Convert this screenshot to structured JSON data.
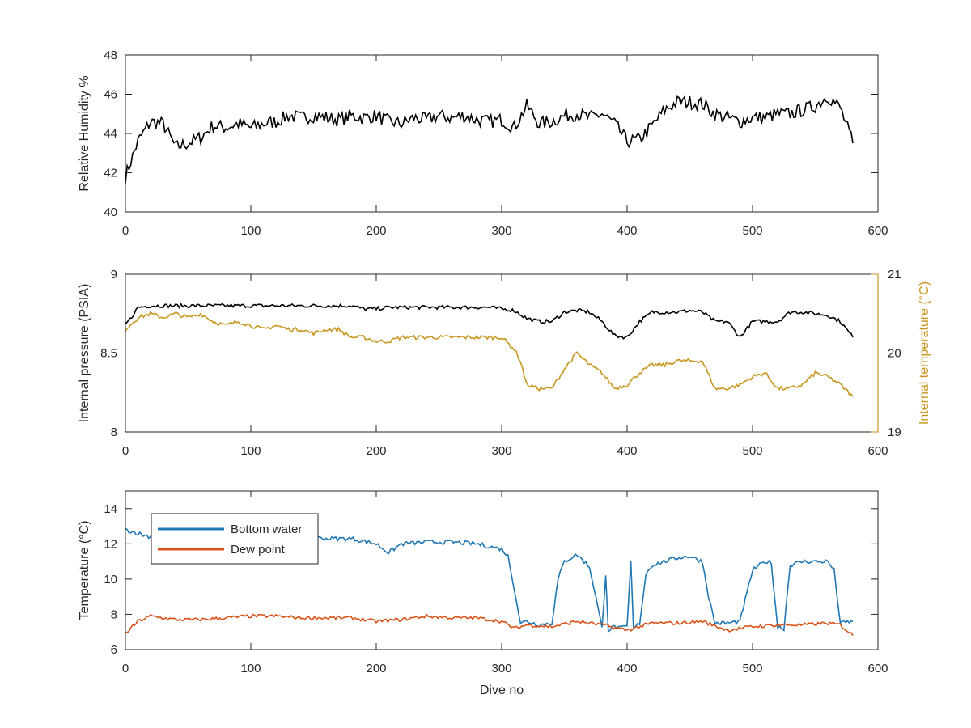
{
  "chart_data": [
    {
      "type": "line",
      "xlim": [
        0,
        600
      ],
      "xticks": [
        0,
        100,
        200,
        300,
        400,
        500,
        600
      ],
      "xlabel": "",
      "ylabel": "Relative Humidity %",
      "ylim": [
        40,
        48
      ],
      "yticks": [
        40,
        42,
        44,
        46,
        48
      ],
      "grid": false,
      "series": [
        {
          "color": "#000000",
          "x": [
            0,
            10,
            20,
            30,
            40,
            50,
            60,
            70,
            80,
            90,
            100,
            110,
            120,
            130,
            140,
            150,
            160,
            170,
            180,
            190,
            200,
            210,
            220,
            230,
            240,
            250,
            260,
            270,
            280,
            290,
            300,
            310,
            320,
            330,
            340,
            350,
            360,
            370,
            380,
            390,
            400,
            410,
            420,
            430,
            440,
            450,
            460,
            470,
            480,
            490,
            500,
            510,
            520,
            530,
            540,
            550,
            560,
            570,
            580
          ],
          "values": [
            41.8,
            43.6,
            44.6,
            44.5,
            43.3,
            43.5,
            43.8,
            44.4,
            44.3,
            44.5,
            44.3,
            44.5,
            44.6,
            44.9,
            44.8,
            44.9,
            44.8,
            44.7,
            44.9,
            44.8,
            44.9,
            44.6,
            44.5,
            44.8,
            44.7,
            44.9,
            44.8,
            44.9,
            44.7,
            44.6,
            44.7,
            44.3,
            45.4,
            44.5,
            44.6,
            44.9,
            45.0,
            44.8,
            45.0,
            44.5,
            43.6,
            43.7,
            44.4,
            45.2,
            45.6,
            45.6,
            45.5,
            45.0,
            44.8,
            44.6,
            44.8,
            44.8,
            45.0,
            45.0,
            45.2,
            45.4,
            45.9,
            45.3,
            43.5
          ]
        }
      ]
    },
    {
      "type": "line",
      "xlim": [
        0,
        600
      ],
      "xticks": [
        0,
        100,
        200,
        300,
        400,
        500,
        600
      ],
      "xlabel": "",
      "ylabel": "Internal pressure (PSIA)",
      "ylim": [
        8,
        9
      ],
      "yticks": [
        8,
        8.5,
        9
      ],
      "y2label": "Internal temperature (°C)",
      "y2lim": [
        19,
        21
      ],
      "y2ticks": [
        19,
        20,
        21
      ],
      "y2color": "#C8961E",
      "grid": false,
      "series": [
        {
          "axis": "left",
          "color": "#000000",
          "x": [
            0,
            5,
            10,
            20,
            30,
            40,
            50,
            60,
            70,
            80,
            90,
            100,
            110,
            120,
            130,
            140,
            150,
            160,
            170,
            180,
            190,
            200,
            210,
            220,
            230,
            240,
            250,
            260,
            270,
            280,
            290,
            300,
            310,
            320,
            330,
            340,
            350,
            360,
            370,
            380,
            390,
            400,
            410,
            420,
            430,
            440,
            450,
            460,
            470,
            480,
            490,
            500,
            510,
            520,
            530,
            540,
            550,
            560,
            570,
            580
          ],
          "values": [
            8.68,
            8.73,
            8.79,
            8.8,
            8.8,
            8.8,
            8.8,
            8.8,
            8.8,
            8.8,
            8.8,
            8.8,
            8.8,
            8.8,
            8.8,
            8.8,
            8.8,
            8.8,
            8.8,
            8.8,
            8.78,
            8.78,
            8.79,
            8.79,
            8.79,
            8.79,
            8.79,
            8.79,
            8.79,
            8.79,
            8.79,
            8.78,
            8.77,
            8.72,
            8.7,
            8.7,
            8.76,
            8.77,
            8.76,
            8.7,
            8.61,
            8.6,
            8.7,
            8.76,
            8.76,
            8.76,
            8.77,
            8.76,
            8.7,
            8.7,
            8.6,
            8.7,
            8.7,
            8.7,
            8.76,
            8.76,
            8.75,
            8.74,
            8.7,
            8.6
          ]
        },
        {
          "axis": "right",
          "color": "#C8961E",
          "x": [
            0,
            10,
            20,
            30,
            40,
            50,
            60,
            70,
            80,
            90,
            100,
            110,
            120,
            130,
            140,
            150,
            160,
            170,
            180,
            190,
            200,
            210,
            220,
            230,
            240,
            250,
            260,
            270,
            280,
            290,
            300,
            310,
            315,
            320,
            330,
            340,
            350,
            360,
            370,
            380,
            390,
            400,
            410,
            420,
            430,
            440,
            450,
            460,
            470,
            480,
            490,
            500,
            510,
            520,
            530,
            540,
            550,
            560,
            570,
            580
          ],
          "values": [
            20.3,
            20.45,
            20.5,
            20.45,
            20.5,
            20.45,
            20.5,
            20.4,
            20.35,
            20.4,
            20.35,
            20.3,
            20.35,
            20.3,
            20.3,
            20.25,
            20.3,
            20.3,
            20.2,
            20.2,
            20.15,
            20.15,
            20.2,
            20.2,
            20.2,
            20.2,
            20.2,
            20.2,
            20.2,
            20.2,
            20.2,
            20.05,
            19.9,
            19.6,
            19.55,
            19.55,
            19.8,
            20.0,
            19.85,
            19.75,
            19.55,
            19.6,
            19.75,
            19.85,
            19.85,
            19.9,
            19.9,
            19.9,
            19.55,
            19.55,
            19.6,
            19.7,
            19.75,
            19.55,
            19.55,
            19.6,
            19.75,
            19.7,
            19.6,
            19.45
          ]
        }
      ]
    },
    {
      "type": "line",
      "xlim": [
        0,
        600
      ],
      "xticks": [
        0,
        100,
        200,
        300,
        400,
        500,
        600
      ],
      "xlabel": "Dive no",
      "ylabel": "Temperature (°C)",
      "ylim": [
        6,
        15
      ],
      "yticks": [
        6,
        8,
        10,
        12,
        14
      ],
      "grid": false,
      "legend": "top-left",
      "series": [
        {
          "name": "Bottom water",
          "color": "#1F77B4",
          "x": [
            0,
            10,
            20,
            40,
            60,
            80,
            100,
            120,
            140,
            160,
            180,
            200,
            210,
            220,
            240,
            260,
            280,
            300,
            305,
            310,
            315,
            320,
            330,
            340,
            345,
            350,
            360,
            370,
            375,
            380,
            383,
            385,
            390,
            395,
            400,
            403,
            405,
            410,
            415,
            420,
            440,
            450,
            460,
            465,
            470,
            480,
            490,
            500,
            510,
            515,
            520,
            525,
            530,
            540,
            560,
            565,
            570,
            580
          ],
          "values": [
            12.8,
            12.6,
            12.4,
            12.4,
            12.5,
            12.4,
            12.3,
            12.5,
            12.4,
            12.3,
            12.3,
            12.0,
            11.5,
            12.0,
            12.1,
            12.1,
            12.0,
            11.7,
            11.3,
            9.5,
            7.5,
            7.6,
            7.4,
            7.5,
            10.0,
            11.0,
            11.4,
            10.7,
            9.0,
            7.2,
            10.3,
            7.1,
            7.3,
            7.2,
            7.3,
            11.0,
            7.2,
            7.5,
            10.3,
            10.8,
            11.2,
            11.3,
            11.0,
            9.0,
            7.5,
            7.5,
            7.6,
            10.5,
            11.0,
            10.9,
            7.3,
            7.2,
            10.8,
            11.0,
            11.0,
            10.5,
            7.5,
            7.6
          ]
        },
        {
          "name": "Dew point",
          "color": "#D95319",
          "x": [
            0,
            10,
            20,
            40,
            60,
            80,
            100,
            120,
            140,
            160,
            180,
            200,
            220,
            240,
            260,
            280,
            300,
            310,
            320,
            340,
            360,
            380,
            400,
            420,
            440,
            460,
            480,
            500,
            520,
            540,
            560,
            570,
            580
          ],
          "values": [
            6.9,
            7.6,
            7.9,
            7.7,
            7.7,
            7.8,
            7.9,
            7.9,
            7.8,
            7.8,
            7.8,
            7.6,
            7.7,
            7.9,
            7.8,
            7.8,
            7.6,
            7.2,
            7.4,
            7.3,
            7.6,
            7.4,
            7.1,
            7.5,
            7.5,
            7.6,
            7.1,
            7.3,
            7.4,
            7.4,
            7.5,
            7.4,
            6.8
          ]
        }
      ]
    }
  ]
}
